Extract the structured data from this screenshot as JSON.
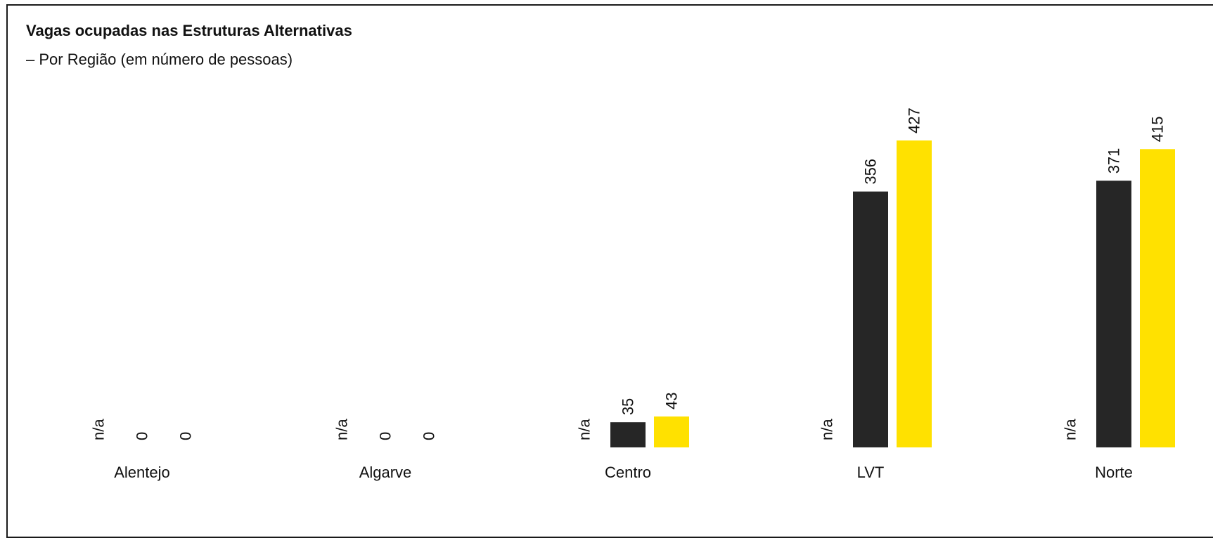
{
  "title": "Vagas ocupadas nas Estruturas Alternativas",
  "subtitle": "– Por Região (em número de pessoas)",
  "colors": {
    "series_2": "#262626",
    "series_3": "#FFE100"
  },
  "chart_data": {
    "type": "bar",
    "title": "Vagas ocupadas nas Estruturas Alternativas",
    "subtitle": "– Por Região (em número de pessoas)",
    "categories": [
      "Alentejo",
      "Algarve",
      "Centro",
      "LVT",
      "Norte"
    ],
    "series": [
      {
        "values": [
          null,
          null,
          null,
          null,
          null
        ],
        "labels": [
          "n/a",
          "n/a",
          "n/a",
          "n/a",
          "n/a"
        ],
        "color": "#FFFFFF"
      },
      {
        "values": [
          0,
          0,
          35,
          356,
          371
        ],
        "labels": [
          "0",
          "0",
          "35",
          "356",
          "371"
        ],
        "color": "#262626"
      },
      {
        "values": [
          0,
          0,
          43,
          427,
          415
        ],
        "labels": [
          "0",
          "0",
          "43",
          "427",
          "415"
        ],
        "color": "#FFE100"
      }
    ],
    "ylim": [
      0,
      427
    ],
    "grid": false,
    "legend": "none",
    "data_label_orientation": "vertical"
  }
}
